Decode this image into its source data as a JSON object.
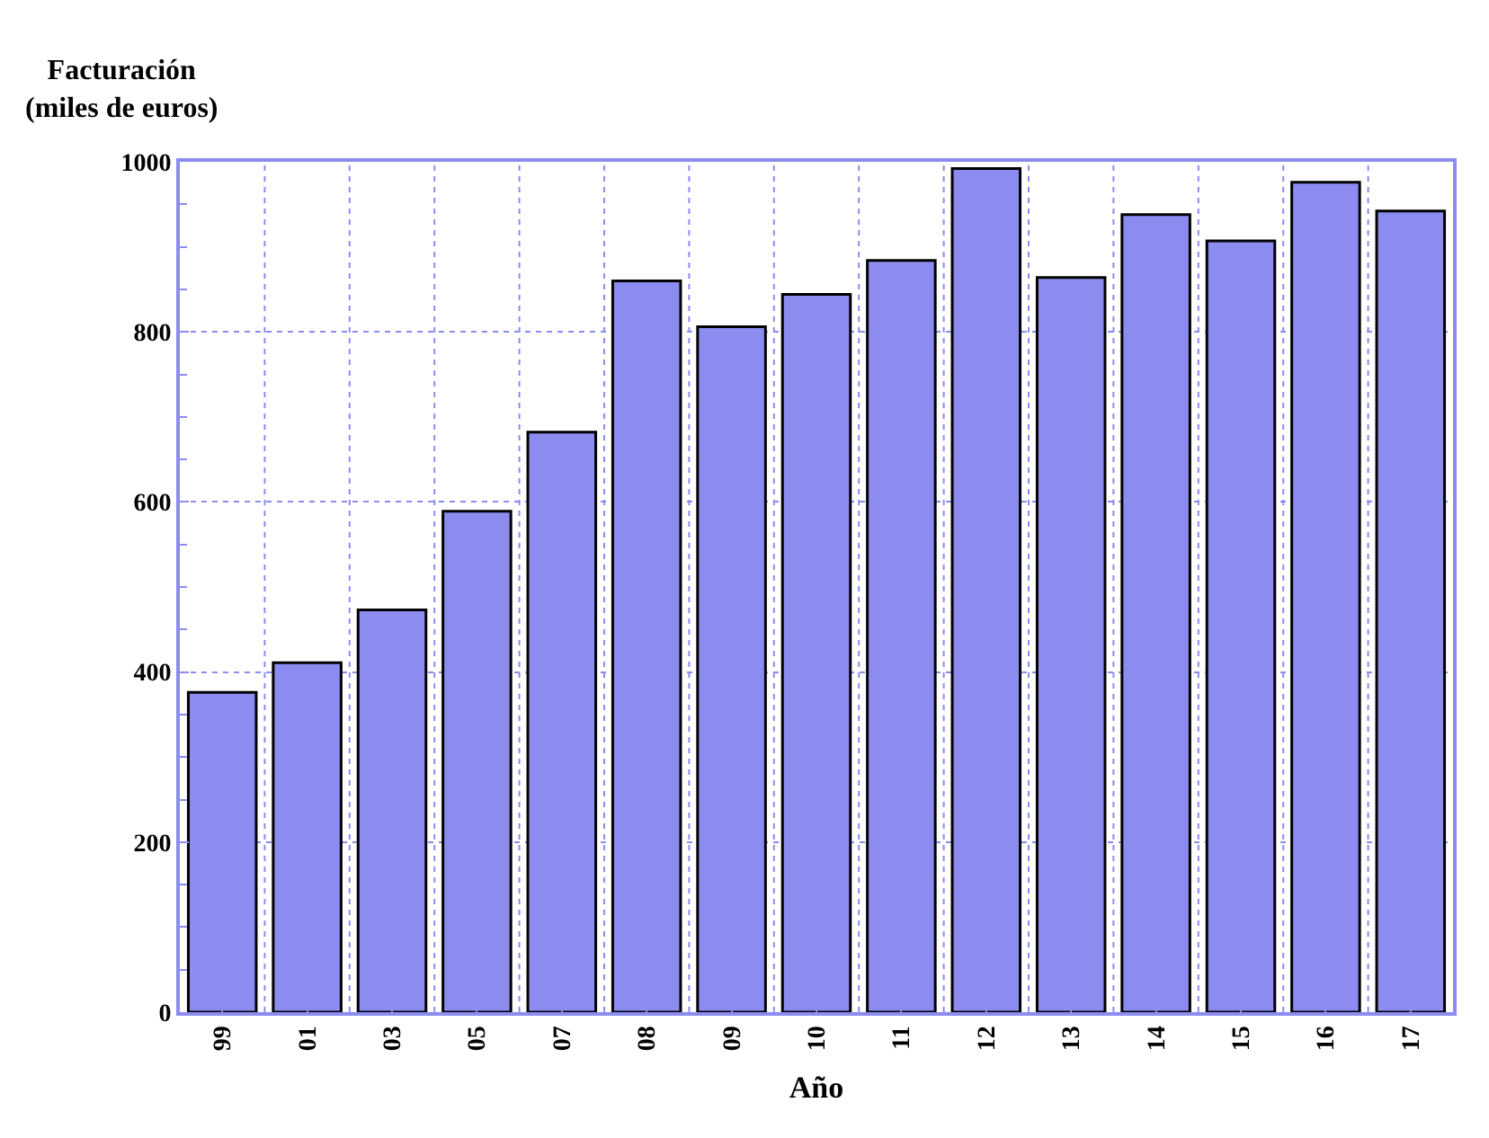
{
  "chart_data": {
    "type": "bar",
    "ylabel": "Facturación\n(miles de euros)",
    "xlabel": "Año",
    "categories": [
      "99",
      "01",
      "03",
      "05",
      "07",
      "08",
      "09",
      "10",
      "11",
      "12",
      "13",
      "14",
      "15",
      "16",
      "17"
    ],
    "values": [
      376,
      411,
      473,
      589,
      682,
      860,
      806,
      844,
      884,
      992,
      864,
      938,
      907,
      976,
      942
    ],
    "color": "#8c8cf0",
    "ylim": [
      0,
      1000
    ],
    "yticks": [
      0,
      200,
      400,
      600,
      800,
      1000
    ],
    "grid": true
  }
}
